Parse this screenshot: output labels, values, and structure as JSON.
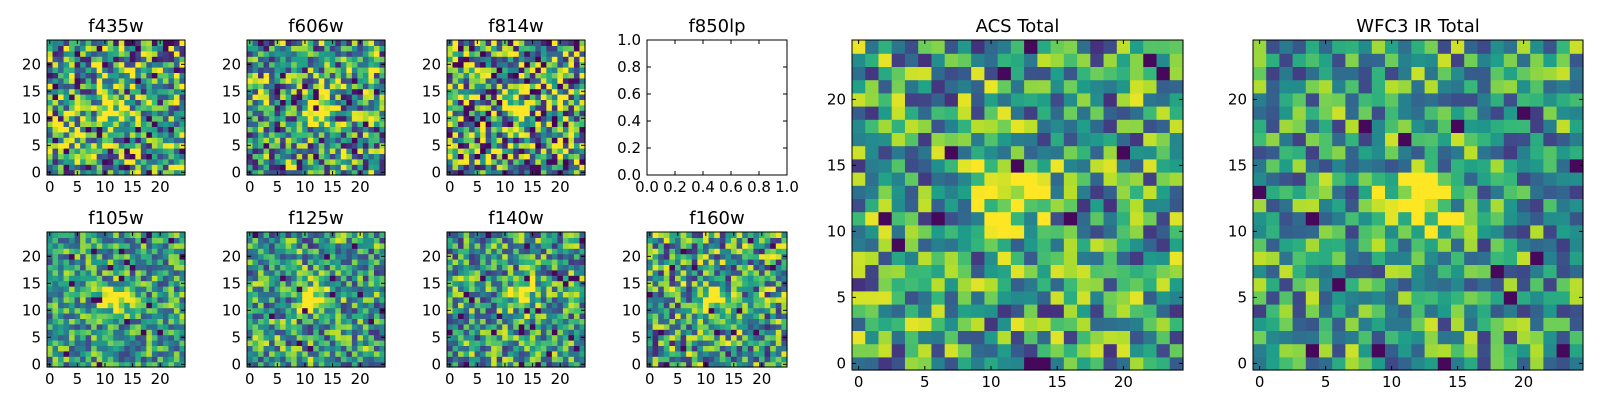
{
  "figure": {
    "description_free": true
  },
  "chart_data": [
    {
      "type": "heatmap",
      "title": "f435w",
      "xticks": [
        "0",
        "5",
        "10",
        "15",
        "20"
      ],
      "yticks": [
        "0",
        "5",
        "10",
        "15",
        "20"
      ],
      "xlim": [
        -0.5,
        24.5
      ],
      "ylim": [
        -0.5,
        24.5
      ],
      "grid": false,
      "colormap": "viridis",
      "peak": [
        11,
        12
      ],
      "seed": 11,
      "noise": 0.55
    },
    {
      "type": "heatmap",
      "title": "f606w",
      "xticks": [
        "0",
        "5",
        "10",
        "15",
        "20"
      ],
      "yticks": [
        "0",
        "5",
        "10",
        "15",
        "20"
      ],
      "xlim": [
        -0.5,
        24.5
      ],
      "ylim": [
        -0.5,
        24.5
      ],
      "grid": false,
      "colormap": "viridis",
      "peak": [
        12,
        12
      ],
      "seed": 23,
      "noise": 0.5
    },
    {
      "type": "heatmap",
      "title": "f814w",
      "xticks": [
        "0",
        "5",
        "10",
        "15",
        "20"
      ],
      "yticks": [
        "0",
        "5",
        "10",
        "15",
        "20"
      ],
      "xlim": [
        -0.5,
        24.5
      ],
      "ylim": [
        -0.5,
        24.5
      ],
      "grid": false,
      "colormap": "viridis",
      "peak": [
        12,
        12
      ],
      "seed": 37,
      "noise": 0.6
    },
    {
      "type": "empty",
      "title": "f850lp",
      "xticks": [
        "0.0",
        "0.2",
        "0.4",
        "0.6",
        "0.8",
        "1.0"
      ],
      "yticks": [
        "0.0",
        "0.2",
        "0.4",
        "0.6",
        "0.8",
        "1.0"
      ],
      "xlim": [
        0,
        1
      ],
      "ylim": [
        0,
        1
      ],
      "grid": false
    },
    {
      "type": "heatmap",
      "title": "f105w",
      "xticks": [
        "0",
        "5",
        "10",
        "15",
        "20"
      ],
      "yticks": [
        "0",
        "5",
        "10",
        "15",
        "20"
      ],
      "xlim": [
        -0.5,
        24.5
      ],
      "ylim": [
        -0.5,
        24.5
      ],
      "grid": false,
      "colormap": "viridis",
      "peak": [
        12,
        12
      ],
      "seed": 41,
      "noise": 0.35
    },
    {
      "type": "heatmap",
      "title": "f125w",
      "xticks": [
        "0",
        "5",
        "10",
        "15",
        "20"
      ],
      "yticks": [
        "0",
        "5",
        "10",
        "15",
        "20"
      ],
      "xlim": [
        -0.5,
        24.5
      ],
      "ylim": [
        -0.5,
        24.5
      ],
      "grid": false,
      "colormap": "viridis",
      "peak": [
        12,
        12
      ],
      "seed": 53,
      "noise": 0.4
    },
    {
      "type": "heatmap",
      "title": "f140w",
      "xticks": [
        "0",
        "5",
        "10",
        "15",
        "20"
      ],
      "yticks": [
        "0",
        "5",
        "10",
        "15",
        "20"
      ],
      "xlim": [
        -0.5,
        24.5
      ],
      "ylim": [
        -0.5,
        24.5
      ],
      "grid": false,
      "colormap": "viridis",
      "peak": [
        13,
        13
      ],
      "seed": 67,
      "noise": 0.4
    },
    {
      "type": "heatmap",
      "title": "f160w",
      "xticks": [
        "0",
        "5",
        "10",
        "15",
        "20"
      ],
      "yticks": [
        "0",
        "5",
        "10",
        "15",
        "20"
      ],
      "xlim": [
        -0.5,
        24.5
      ],
      "ylim": [
        -0.5,
        24.5
      ],
      "grid": false,
      "colormap": "viridis",
      "peak": [
        11,
        12
      ],
      "seed": 79,
      "noise": 0.45
    },
    {
      "type": "heatmap",
      "title": "ACS Total",
      "xticks": [
        "0",
        "5",
        "10",
        "15",
        "20"
      ],
      "yticks": [
        "0",
        "5",
        "10",
        "15",
        "20"
      ],
      "xlim": [
        -0.5,
        24.5
      ],
      "ylim": [
        -0.5,
        24.5
      ],
      "grid": false,
      "colormap": "viridis",
      "peak": [
        11,
        12
      ],
      "seed": 97,
      "noise": 0.42
    },
    {
      "type": "heatmap",
      "title": "WFC3 IR Total",
      "xticks": [
        "0",
        "5",
        "10",
        "15",
        "20"
      ],
      "yticks": [
        "0",
        "5",
        "10",
        "15",
        "20"
      ],
      "xlim": [
        -0.5,
        24.5
      ],
      "ylim": [
        -0.5,
        24.5
      ],
      "grid": false,
      "colormap": "viridis",
      "peak": [
        12,
        12
      ],
      "seed": 131,
      "noise": 0.38
    }
  ]
}
